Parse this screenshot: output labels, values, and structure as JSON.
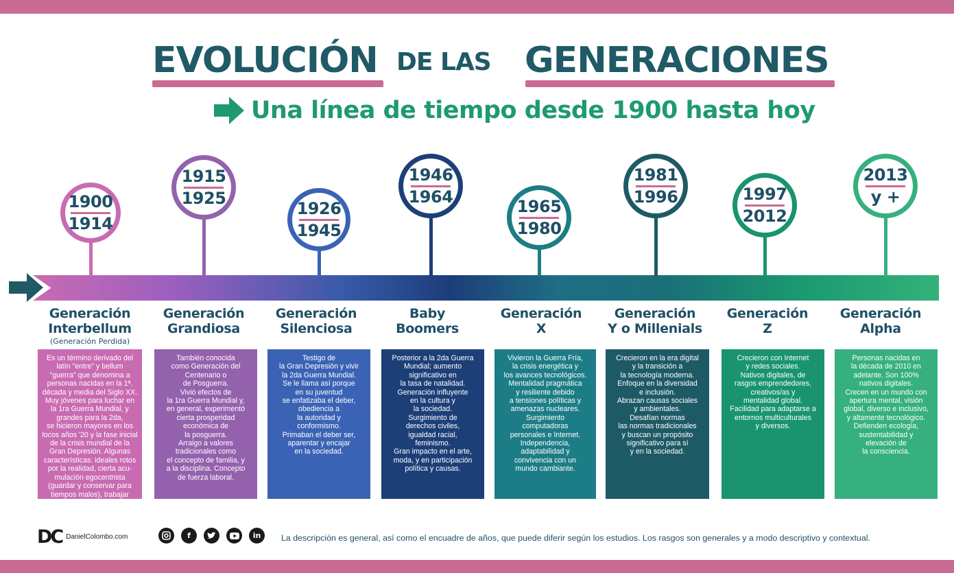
{
  "title": {
    "part1": "EVOLUCIÓN",
    "part2": "DE LAS",
    "part3": "GENERACIONES"
  },
  "subtitle": "Una línea de tiempo desde 1900 hasta hoy",
  "colors": {
    "band": "#c96b93",
    "title": "#1f5a66",
    "subtitle": "#1e9a72"
  },
  "generations": [
    {
      "years": [
        "1900",
        "1914"
      ],
      "name_l1": "Generación",
      "name_l2": "Interbellum",
      "note": "(Generación Perdida)",
      "color": "#c96bb2",
      "description": "Es un término derivado del\nlatín \"entre\" y bellum\n\"guerra\" que denomina a\npersonas nacidas en la 1ª.\ndécada y media del Siglo XX.\nMuy jóvenes para luchar en\nla 1ra Guerra Mundial, y\ngrandes para la 2da,\nse hicieron mayores en los\nlocos años '20 y la fase inicial\nde la crisis mundial de la\nGran Depresión. Algunas\ncaracterísticas: ideales rotos\npor la realidad, cierta acu-\nmulación egocentrista\n(guardar y conservar para\ntiempos malos), trabajar\nsin descanso."
    },
    {
      "years": [
        "1915",
        "1925"
      ],
      "name_l1": "Generación",
      "name_l2": "Grandiosa",
      "color": "#9462ad",
      "description": "También conocida\ncomo Generación del\nCentenario o\nde Posguerra.\nVivió efectos de\nla 1ra Guerra Mundial y,\nen general, experimentó\ncierta prosperidad\neconómica de\nla posguerra.\nArraigo a valores\ntradicionales como\nel concepto de familia, y\na la disciplina. Concepto\nde fuerza laboral."
    },
    {
      "years": [
        "1926",
        "1945"
      ],
      "name_l1": "Generación",
      "name_l2": "Silenciosa",
      "color": "#3b63b5",
      "description": "Testigo de\nla Gran Depresión y vivir\nla 2da Guerra Mundial.\nSe le llama así porque\nen su juventud\nse enfatizaba el deber,\nobediencia a\nla autoridad y\nconformismo.\nPrimaban el deber ser,\naparentar y encajar\nen la sociedad."
    },
    {
      "years": [
        "1946",
        "1964"
      ],
      "name_l1": "Baby",
      "name_l2": "Boomers",
      "color": "#1d3f78",
      "description": "Posterior a la 2da Guerra\nMundial; aumento\nsignificativo en\nla tasa de natalidad.\nGeneración influyente\nen la cultura y\nla sociedad.\nSurgimiento de\nderechos civiles,\nigualdad racial,\nfeminismo.\nGran impacto en el arte,\nmoda, y en participación\npolítica y causas."
    },
    {
      "years": [
        "1965",
        "1980"
      ],
      "name_l1": "Generación",
      "name_l2": "X",
      "color": "#1d7d86",
      "description": "Vivieron la Guerra Fría,\nla crisis energética y\nlos avances tecnológicos.\nMentalidad pragmática\ny resiliente debido\na tensiones políticas y\namenazas nucleares.\nSurgimiento\ncomputadoras\npersonales e Internet.\nIndependencia,\nadaptabilidad y\nconvivencia con un\nmundo cambiante."
    },
    {
      "years": [
        "1981",
        "1996"
      ],
      "name_l1": "Generación",
      "name_l2": "Y o Millenials",
      "color": "#1e5a66",
      "description": "Crecieron en la era digital\ny la transición a\nla tecnología moderna.\nEnfoque en la diversidad\ne inclusión.\nAbrazan causas sociales\ny ambientales.\nDesafían normas\nlas normas tradicionales\ny buscan un propósito\nsignificativo para sí\ny en la sociedad."
    },
    {
      "years": [
        "1997",
        "2012"
      ],
      "name_l1": "Generación",
      "name_l2": "Z",
      "color": "#19946e",
      "description": "Crecieron con Internet\ny redes sociales.\nNativos digitales, de\nrasgos emprendedores,\ncreativos/as y\nmentalidad global.\nFacilidad para adaptarse a\nentornos multiculturales\ny diversos."
    },
    {
      "years": [
        "2013",
        "y +"
      ],
      "name_l1": "Generación",
      "name_l2": "Alpha",
      "color": "#36b07f",
      "description": "Personas nacidas en\nla década de 2010 en\nadelante. Son 100%\nnativos digitales.\nCrecen en un mundo con\napertura mental, visión\nglobal, diverso e inclusivo,\ny altamente tecnológico.\nDefienden ecología,\nsustentabilidad y\nelevación de\nla consciencia."
    }
  ],
  "footer": {
    "logo": "DC",
    "site": "DanielColombo.com",
    "social_icons": [
      "instagram-icon",
      "facebook-icon",
      "twitter-icon",
      "youtube-icon",
      "linkedin-icon"
    ],
    "disclaimer": "La descripción es general, así como el encuadre de años, que puede diferir según los estudios. Los rasgos son generales y a modo descriptivo y contextual."
  }
}
